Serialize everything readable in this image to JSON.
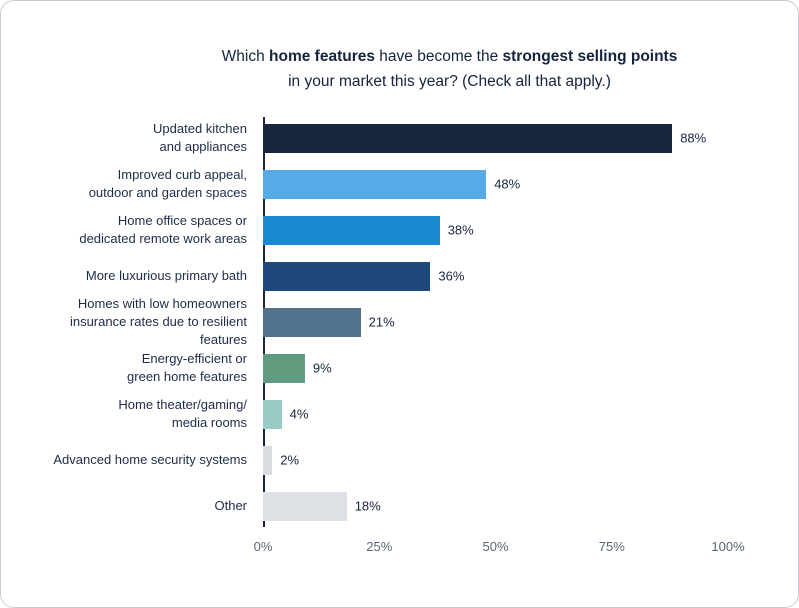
{
  "title": {
    "seg1": "Which ",
    "seg2": "home features",
    "seg3": " have become the ",
    "seg4": "strongest selling points",
    "line2": "in your market this year? (Check all that apply.)"
  },
  "chart_data": {
    "type": "bar",
    "orientation": "horizontal",
    "title": "Which home features have become the strongest selling points in your market this year? (Check all that apply.)",
    "categories": [
      "Updated kitchen\nand appliances",
      "Improved curb appeal,\noutdoor and garden spaces",
      "Home office spaces or\ndedicated remote work areas",
      "More luxurious primary bath",
      "Homes with low homeowners\ninsurance rates due to resilient features",
      "Energy-efficient or\ngreen home features",
      "Home theater/gaming/\nmedia rooms",
      "Advanced home security systems",
      "Other"
    ],
    "values": [
      88,
      48,
      38,
      36,
      21,
      9,
      4,
      2,
      18
    ],
    "value_labels": [
      "88%",
      "48%",
      "38%",
      "36%",
      "21%",
      "9%",
      "4%",
      "2%",
      "18%"
    ],
    "bar_colors": [
      "#17253f",
      "#55abe6",
      "#1b8ad2",
      "#21487a",
      "#52718c",
      "#619c80",
      "#99cac3",
      "#d8dce1",
      "#dde1e6"
    ],
    "xlim": [
      0,
      100
    ],
    "x_ticks": [
      "0%",
      "25%",
      "50%",
      "75%",
      "100%"
    ],
    "x_tick_values": [
      0,
      25,
      50,
      75,
      100
    ],
    "grid": false,
    "legend": "none",
    "axis_color": "#17253f"
  }
}
